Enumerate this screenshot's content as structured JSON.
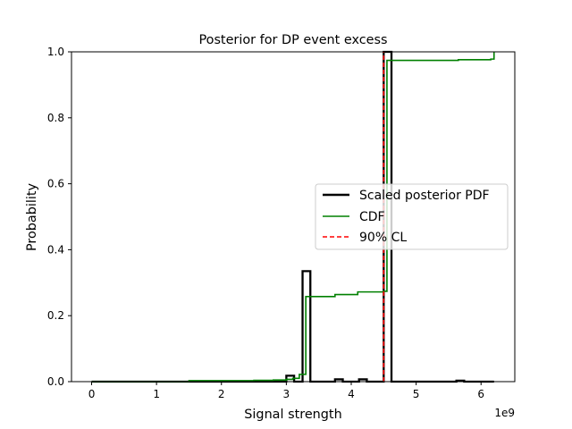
{
  "chart_data": {
    "type": "line",
    "title": "Posterior for DP event excess",
    "xlabel": "Signal strength",
    "ylabel": "Probability",
    "x_offset_text": "1e9",
    "xlim": [
      -0.31,
      6.52
    ],
    "ylim": [
      0,
      1.0
    ],
    "x_scale_factor": 1000000000.0,
    "xticks": [
      0,
      1,
      2,
      3,
      4,
      5,
      6
    ],
    "xtick_labels": [
      "0",
      "1",
      "2",
      "3",
      "4",
      "5",
      "6"
    ],
    "yticks": [
      0.0,
      0.2,
      0.4,
      0.6,
      0.8,
      1.0
    ],
    "ytick_labels": [
      "0.0",
      "0.2",
      "0.4",
      "0.6",
      "0.8",
      "1.0"
    ],
    "grid": false,
    "legend_position": "center-right",
    "legend": [
      {
        "label": "Scaled posterior PDF",
        "color": "#000000",
        "style": "solid-thick"
      },
      {
        "label": "CDF",
        "color": "#008000",
        "style": "solid"
      },
      {
        "label": "90% CL",
        "color": "#ff0000",
        "style": "dashed"
      }
    ],
    "series": [
      {
        "name": "Scaled posterior PDF",
        "color": "#000000",
        "kind": "histogram-step",
        "x": [
          0.0,
          3.0,
          3.12,
          3.25,
          3.37,
          3.75,
          3.87,
          4.12,
          4.24,
          4.5,
          4.62,
          5.62,
          5.74,
          6.2
        ],
        "y": [
          0.0,
          0.018,
          0.0,
          0.335,
          0.0,
          0.007,
          0.0,
          0.007,
          0.0,
          1.0,
          0.0,
          0.003,
          0.0,
          0.0
        ]
      },
      {
        "name": "CDF",
        "color": "#008000",
        "kind": "step",
        "x": [
          0.0,
          1.5,
          2.5,
          2.8,
          3.0,
          3.1,
          3.2,
          3.3,
          3.75,
          4.1,
          4.5,
          4.55,
          5.65,
          6.15,
          6.2
        ],
        "y": [
          0.0,
          0.003,
          0.004,
          0.005,
          0.007,
          0.01,
          0.022,
          0.258,
          0.264,
          0.272,
          0.274,
          0.974,
          0.976,
          0.978,
          1.0
        ]
      },
      {
        "name": "90% CL",
        "color": "#ff0000",
        "kind": "vline",
        "x": 4.5
      }
    ]
  }
}
